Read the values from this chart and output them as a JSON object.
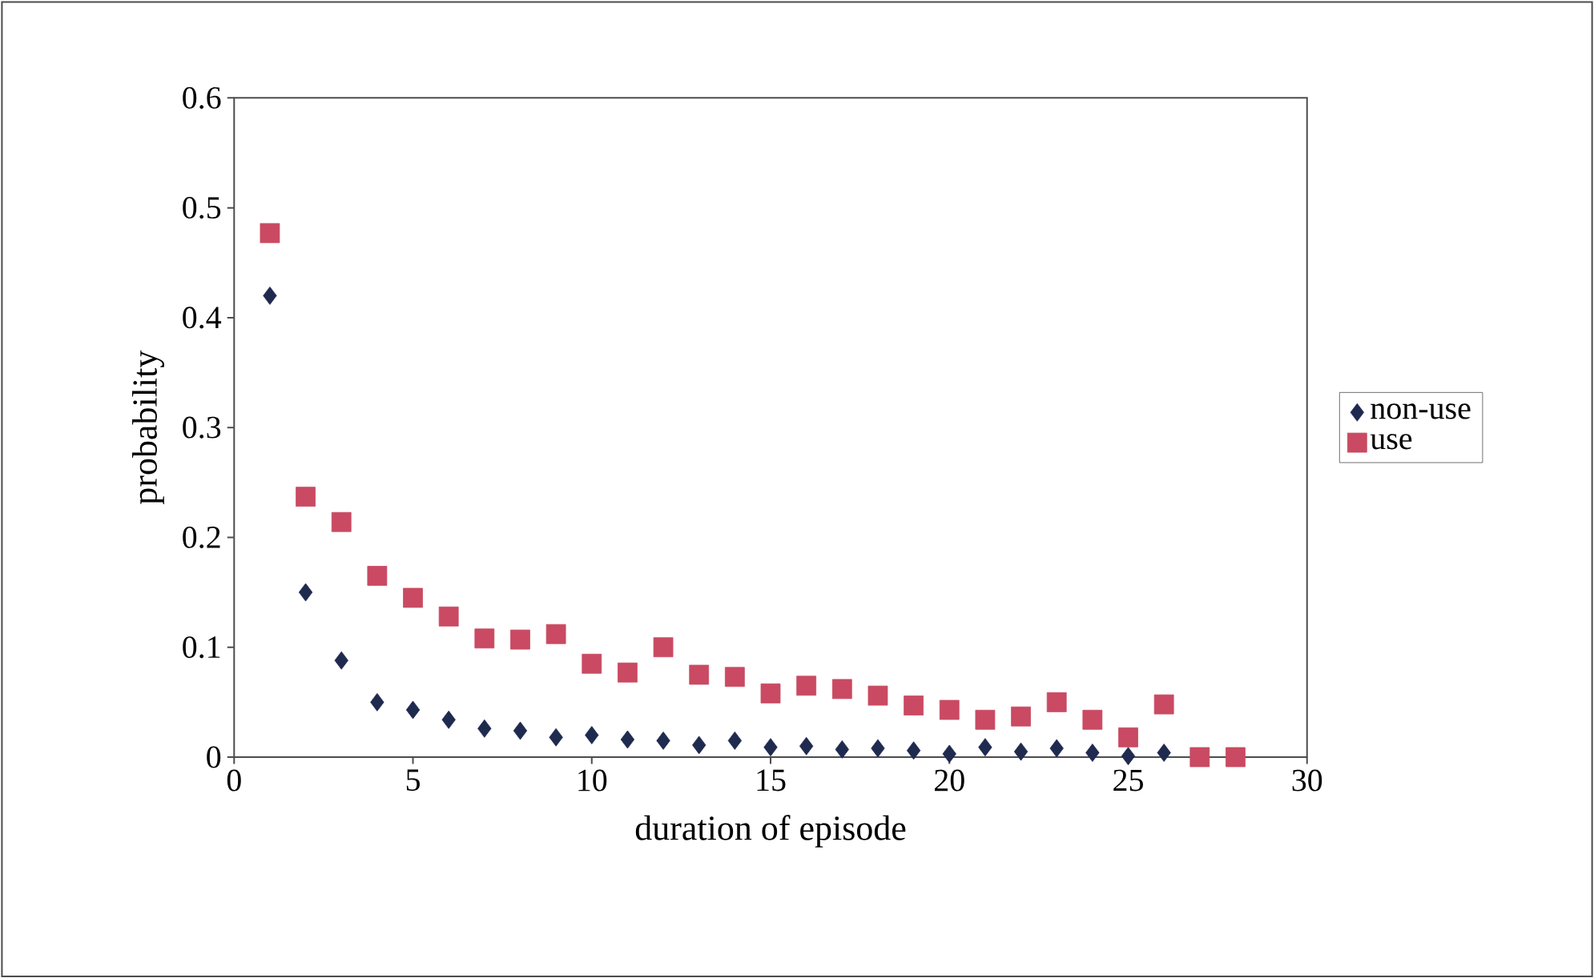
{
  "chart_data": {
    "type": "scatter",
    "xlabel": "duration of episode",
    "ylabel": "probability",
    "xlim": [
      0,
      30
    ],
    "xticks": [
      0,
      5,
      10,
      15,
      20,
      25,
      30
    ],
    "ylim": [
      0,
      0.6
    ],
    "yticks": [
      0,
      0.1,
      0.2,
      0.3,
      0.4,
      0.5,
      0.6
    ],
    "legend": "right",
    "grid": false,
    "series": [
      {
        "name": "non-use",
        "color": "#1f2a4f",
        "marker": "diamond",
        "x": [
          1,
          2,
          3,
          4,
          5,
          6,
          7,
          8,
          9,
          10,
          11,
          12,
          13,
          14,
          15,
          16,
          17,
          18,
          19,
          20,
          21,
          22,
          23,
          24,
          25,
          26
        ],
        "values": [
          0.42,
          0.15,
          0.088,
          0.05,
          0.043,
          0.034,
          0.026,
          0.024,
          0.018,
          0.02,
          0.016,
          0.015,
          0.011,
          0.015,
          0.009,
          0.01,
          0.007,
          0.008,
          0.006,
          0.003,
          0.009,
          0.005,
          0.008,
          0.004,
          0.001,
          0.004
        ]
      },
      {
        "name": "use",
        "color": "#c94a62",
        "marker": "square",
        "x": [
          1,
          2,
          3,
          4,
          5,
          6,
          7,
          8,
          9,
          10,
          11,
          12,
          13,
          14,
          15,
          16,
          17,
          18,
          19,
          20,
          21,
          22,
          23,
          24,
          25,
          26,
          27,
          28
        ],
        "values": [
          0.477,
          0.237,
          0.214,
          0.165,
          0.145,
          0.128,
          0.108,
          0.107,
          0.112,
          0.085,
          0.077,
          0.1,
          0.075,
          0.073,
          0.058,
          0.065,
          0.062,
          0.056,
          0.047,
          0.043,
          0.034,
          0.037,
          0.05,
          0.034,
          0.018,
          0.048,
          0,
          0
        ]
      }
    ]
  }
}
